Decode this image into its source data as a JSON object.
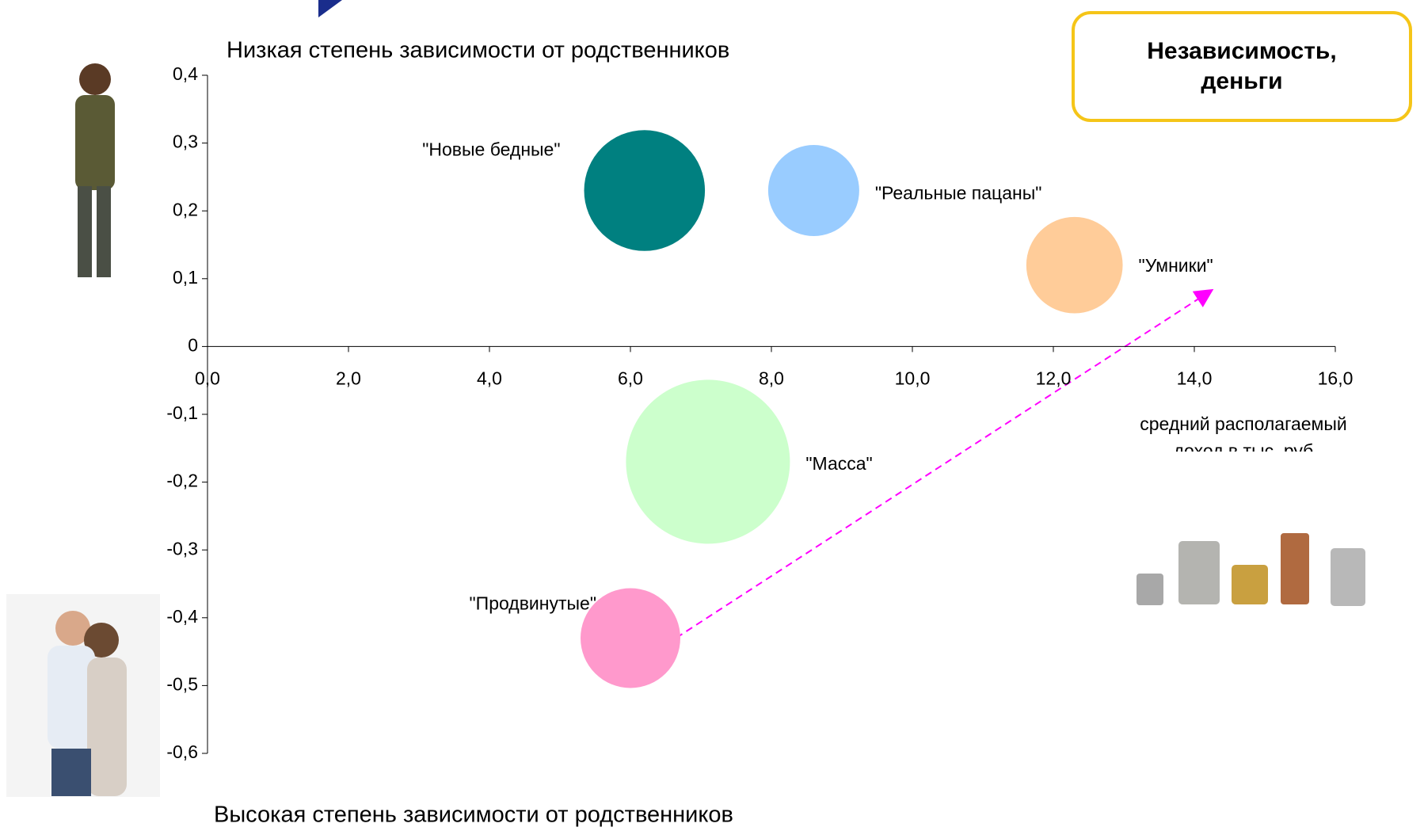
{
  "chart_data": {
    "type": "bubble",
    "title_top": "Низкая степень зависимости от родственников",
    "title_bottom": "Высокая степень зависимости от родственников",
    "x_label": "средний располагаемый доход в тыс. руб",
    "callout": "Независимость, деньги",
    "series": [
      {
        "name": "\"Новые бедные\"",
        "color": "#008080",
        "x": [
          6.2
        ],
        "values": [
          0.23
        ],
        "sizes": [
          44
        ]
      },
      {
        "name": "\"Реальные пацаны\"",
        "color": "#99ccff",
        "x": [
          8.6
        ],
        "values": [
          0.23
        ],
        "sizes": [
          25
        ]
      },
      {
        "name": "\"Умники\"",
        "color": "#ffcc99",
        "x": [
          12.3
        ],
        "values": [
          0.12
        ],
        "sizes": [
          28
        ]
      },
      {
        "name": "\"Масса\"",
        "color": "#ccffcc",
        "x": [
          7.1
        ],
        "values": [
          -0.17
        ],
        "sizes": [
          81
        ]
      },
      {
        "name": "\"Продвинутые\"",
        "color": "#ff99cc",
        "x": [
          6.0
        ],
        "values": [
          -0.43
        ],
        "sizes": [
          30
        ]
      }
    ],
    "xlim": [
      0,
      16
    ],
    "xticks": [
      {
        "value": 0,
        "label": "0,0"
      },
      {
        "value": 2,
        "label": "2,0"
      },
      {
        "value": 4,
        "label": "4,0"
      },
      {
        "value": 6,
        "label": "6,0"
      },
      {
        "value": 8,
        "label": "8,0"
      },
      {
        "value": 10,
        "label": "10,0"
      },
      {
        "value": 12,
        "label": "12,0"
      },
      {
        "value": 14,
        "label": "14,0"
      },
      {
        "value": 16,
        "label": "16,0"
      }
    ],
    "ylim": [
      -0.6,
      0.4
    ],
    "yticks": [
      {
        "value": 0.4,
        "label": "0,4"
      },
      {
        "value": 0.3,
        "label": "0,3"
      },
      {
        "value": 0.2,
        "label": "0,2"
      },
      {
        "value": 0.1,
        "label": "0,1"
      },
      0,
      {
        "value": -0.1,
        "label": "-0,1"
      },
      {
        "value": -0.2,
        "label": "-0,2"
      },
      {
        "value": -0.3,
        "label": "-0,3"
      },
      {
        "value": -0.4,
        "label": "-0,4"
      },
      {
        "value": -0.5,
        "label": "-0,5"
      },
      {
        "value": -0.6,
        "label": "-0,6"
      }
    ]
  }
}
